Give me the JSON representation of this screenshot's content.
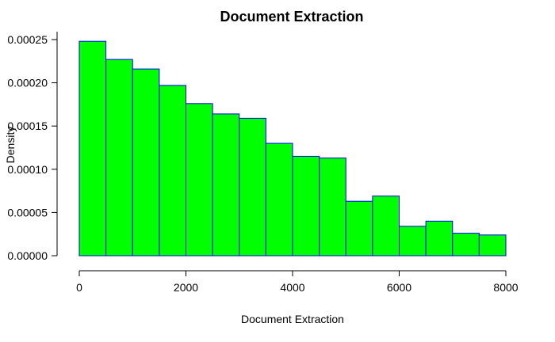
{
  "chart_data": {
    "type": "bar",
    "title": "Document Extraction",
    "xlabel": "Document Extraction",
    "ylabel": "Density",
    "bin_edges": [
      0,
      500,
      1000,
      1500,
      2000,
      2500,
      3000,
      3500,
      4000,
      4500,
      5000,
      5500,
      6000,
      6500,
      7000,
      7500,
      8000
    ],
    "values": [
      0.000248,
      0.000227,
      0.000216,
      0.000197,
      0.000176,
      0.000164,
      0.000159,
      0.00013,
      0.000115,
      0.000113,
      6.3e-05,
      6.9e-05,
      3.4e-05,
      4e-05,
      2.6e-05,
      2.4e-05
    ],
    "xlim": [
      0,
      8000
    ],
    "ylim": [
      0,
      0.00025
    ],
    "x_ticks": [
      0,
      2000,
      4000,
      6000,
      8000
    ],
    "x_tick_labels": [
      "0",
      "2000",
      "4000",
      "6000",
      "8000"
    ],
    "y_ticks": [
      0,
      5e-05,
      0.0001,
      0.00015,
      0.0002,
      0.00025
    ],
    "y_tick_labels": [
      "0.00000",
      "0.00005",
      "0.00010",
      "0.00015",
      "0.00020",
      "0.00025"
    ],
    "bar_fill": "#00ff00",
    "bar_border": "#0000ff",
    "grid": false,
    "legend": "none"
  }
}
